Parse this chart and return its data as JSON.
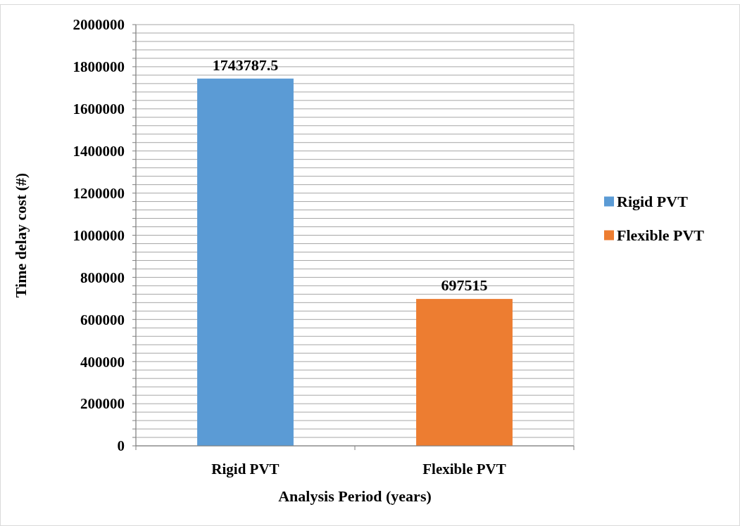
{
  "chart_data": {
    "type": "bar",
    "xlabel": "Analysis Period (years)",
    "ylabel": "Time delay cost (#)",
    "categories": [
      "Rigid PVT",
      "Flexible PVT"
    ],
    "series": [
      {
        "name": "Rigid PVT",
        "color": "#5b9bd5",
        "values": [
          1743787.5,
          null
        ]
      },
      {
        "name": "Flexible PVT",
        "color": "#ed7d31",
        "values": [
          null,
          697515
        ]
      }
    ],
    "ylim": [
      0,
      2000000
    ],
    "yticks": [
      0,
      {
        "value": 40000,
        "label": null
      },
      {
        "value": 80000,
        "label": null
      },
      {
        "value": 120000,
        "label": null
      },
      {
        "value": 160000,
        "label": null
      },
      200000,
      {
        "value": 240000,
        "label": null
      },
      {
        "value": 280000,
        "label": null
      },
      {
        "value": 320000,
        "label": null
      },
      {
        "value": 360000,
        "label": null
      },
      400000,
      {
        "value": 440000,
        "label": null
      },
      {
        "value": 480000,
        "label": null
      },
      {
        "value": 520000,
        "label": null
      },
      {
        "value": 560000,
        "label": null
      },
      600000,
      {
        "value": 640000,
        "label": null
      },
      {
        "value": 680000,
        "label": null
      },
      {
        "value": 720000,
        "label": null
      },
      {
        "value": 760000,
        "label": null
      },
      800000,
      {
        "value": 840000,
        "label": null
      },
      {
        "value": 880000,
        "label": null
      },
      {
        "value": 920000,
        "label": null
      },
      {
        "value": 960000,
        "label": null
      },
      1000000,
      {
        "value": 1040000,
        "label": null
      },
      {
        "value": 1080000,
        "label": null
      },
      {
        "value": 1120000,
        "label": null
      },
      {
        "value": 1160000,
        "label": null
      },
      1200000,
      {
        "value": 1240000,
        "label": null
      },
      {
        "value": 1280000,
        "label": null
      },
      {
        "value": 1320000,
        "label": null
      },
      {
        "value": 1360000,
        "label": null
      },
      1400000,
      {
        "value": 1440000,
        "label": null
      },
      {
        "value": 1480000,
        "label": null
      },
      {
        "value": 1520000,
        "label": null
      },
      {
        "value": 1560000,
        "label": null
      },
      1600000,
      {
        "value": 1640000,
        "label": null
      },
      {
        "value": 1680000,
        "label": null
      },
      {
        "value": 1720000,
        "label": null
      },
      {
        "value": 1760000,
        "label": null
      },
      1800000,
      {
        "value": 1840000,
        "label": null
      },
      {
        "value": 1880000,
        "label": null
      },
      {
        "value": 1920000,
        "label": null
      },
      {
        "value": 1960000,
        "label": null
      },
      2000000
    ],
    "grid": true,
    "legend": "right",
    "data_labels": true
  }
}
